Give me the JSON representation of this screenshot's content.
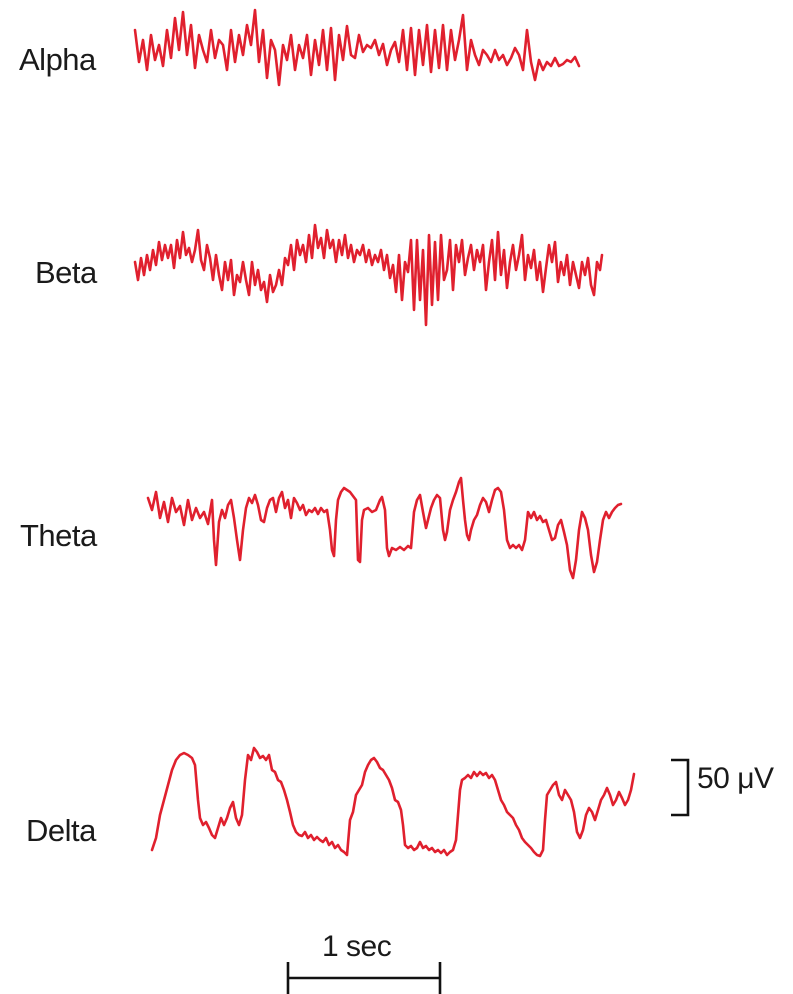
{
  "waves": {
    "alpha": {
      "label": "Alpha"
    },
    "beta": {
      "label": "Beta"
    },
    "theta": {
      "label": "Theta"
    },
    "delta": {
      "label": "Delta"
    }
  },
  "scale_bars": {
    "amplitude": {
      "label": "50 μV"
    },
    "time": {
      "label": "1 sec"
    }
  },
  "colors": {
    "trace": "#e0202e",
    "text": "#1a1a1a"
  }
}
